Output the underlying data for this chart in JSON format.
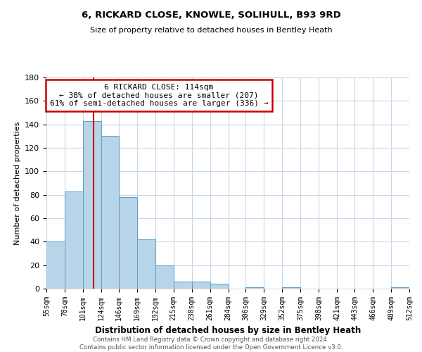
{
  "title": "6, RICKARD CLOSE, KNOWLE, SOLIHULL, B93 9RD",
  "subtitle": "Size of property relative to detached houses in Bentley Heath",
  "xlabel": "Distribution of detached houses by size in Bentley Heath",
  "ylabel": "Number of detached properties",
  "bar_color": "#b8d4e8",
  "bar_edge_color": "#5a9ec9",
  "background_color": "#ffffff",
  "grid_color": "#c8d8e8",
  "bins": [
    55,
    78,
    101,
    124,
    146,
    169,
    192,
    215,
    238,
    261,
    284,
    306,
    329,
    352,
    375,
    398,
    421,
    443,
    466,
    489,
    512
  ],
  "counts": [
    40,
    83,
    143,
    130,
    78,
    42,
    20,
    6,
    6,
    4,
    0,
    1,
    0,
    1,
    0,
    0,
    0,
    0,
    0,
    1
  ],
  "tick_labels": [
    "55sqm",
    "78sqm",
    "101sqm",
    "124sqm",
    "146sqm",
    "169sqm",
    "192sqm",
    "215sqm",
    "238sqm",
    "261sqm",
    "284sqm",
    "306sqm",
    "329sqm",
    "352sqm",
    "375sqm",
    "398sqm",
    "421sqm",
    "443sqm",
    "466sqm",
    "489sqm",
    "512sqm"
  ],
  "ylim": [
    0,
    180
  ],
  "yticks": [
    0,
    20,
    40,
    60,
    80,
    100,
    120,
    140,
    160,
    180
  ],
  "vline_x": 114,
  "annotation_title": "6 RICKARD CLOSE: 114sqm",
  "annotation_line1": "← 38% of detached houses are smaller (207)",
  "annotation_line2": "61% of semi-detached houses are larger (336) →",
  "annotation_box_color": "#ffffff",
  "annotation_box_edge": "#cc0000",
  "vline_color": "#cc0000",
  "footer1": "Contains HM Land Registry data © Crown copyright and database right 2024.",
  "footer2": "Contains public sector information licensed under the Open Government Licence v3.0."
}
